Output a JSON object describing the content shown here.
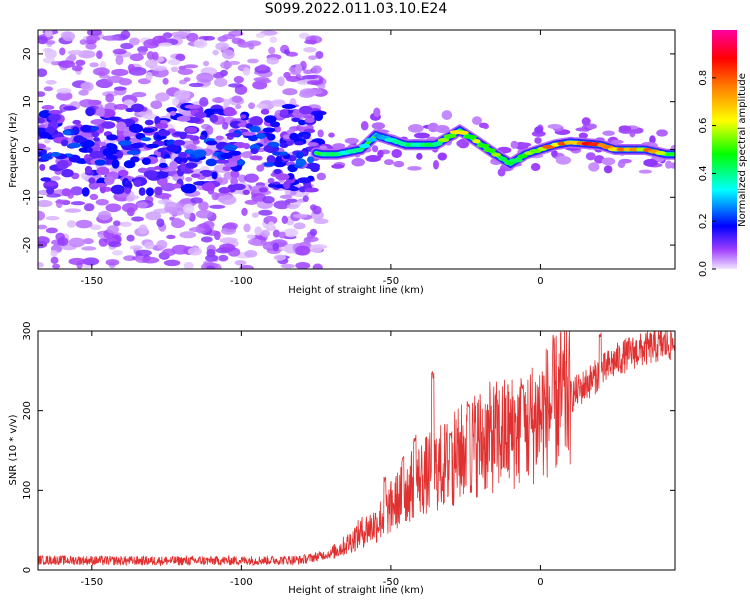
{
  "title": "S099.2022.011.03.10.E24",
  "chart_data": [
    {
      "type": "heatmap",
      "xlabel": "Height of straight line (km)",
      "ylabel": "Frequency (Hz)",
      "xlim": [
        -168,
        45
      ],
      "ylim": [
        -25,
        25
      ],
      "x_ticks": [
        -150,
        -100,
        -50,
        0
      ],
      "y_ticks": [
        -20,
        -10,
        0,
        10,
        20
      ],
      "colorbar": {
        "label": "Normalized spectral amplitude",
        "range": [
          0,
          1
        ],
        "ticks": [
          "0.0",
          "0.2",
          "0.4",
          "0.6",
          "0.8"
        ],
        "colors": [
          "#f0e4ff",
          "#7b00ff",
          "#0000ff",
          "#00ffff",
          "#00ff00",
          "#ffff00",
          "#ff8000",
          "#ff0000",
          "#ff00a0"
        ]
      },
      "ridge": {
        "x": [
          -168,
          -150,
          -130,
          -110,
          -95,
          -80,
          -73,
          -68,
          -60,
          -55,
          -50,
          -45,
          -35,
          -27,
          -22,
          -15,
          -10,
          -5,
          0,
          5,
          10,
          20,
          25,
          35,
          42
        ],
        "frequency": [
          1,
          1,
          0.5,
          1,
          0.5,
          0,
          -1,
          -1,
          0,
          3,
          2,
          1,
          1,
          4,
          2,
          -1,
          -3,
          -1,
          0,
          1,
          1.5,
          1,
          0,
          0,
          -1
        ],
        "amplitude": [
          0.2,
          0.25,
          0.25,
          0.2,
          0.2,
          0.2,
          0.35,
          0.45,
          0.4,
          0.3,
          0.4,
          0.45,
          0.5,
          0.8,
          0.55,
          0.6,
          0.45,
          0.55,
          0.75,
          0.8,
          0.85,
          0.9,
          0.85,
          0.75,
          0.55
        ]
      }
    },
    {
      "type": "line",
      "xlabel": "Height of straight line (km)",
      "ylabel": "SNR (10 * v/v)",
      "xlim": [
        -168,
        45
      ],
      "ylim": [
        0,
        300
      ],
      "x_ticks": [
        -150,
        -100,
        -50,
        0
      ],
      "y_ticks": [
        0,
        100,
        200,
        300
      ],
      "color": "#e03030",
      "trend": {
        "x": [
          -168,
          -140,
          -110,
          -80,
          -70,
          -65,
          -60,
          -55,
          -50,
          -45,
          -40,
          -35,
          -30,
          -25,
          -20,
          -15,
          -10,
          -5,
          0,
          5,
          10,
          15,
          20,
          25,
          30,
          35,
          40,
          45
        ],
        "snr": [
          12,
          11,
          11,
          12,
          20,
          30,
          45,
          55,
          75,
          95,
          110,
          120,
          130,
          145,
          155,
          160,
          165,
          170,
          185,
          200,
          215,
          230,
          245,
          260,
          270,
          275,
          280,
          282
        ]
      },
      "peaks": [
        {
          "x": -36,
          "snr": 250
        },
        {
          "x": -42,
          "snr": 170
        },
        {
          "x": -46,
          "snr": 145
        },
        {
          "x": -52,
          "snr": 120
        },
        {
          "x": -30,
          "snr": 175
        },
        {
          "x": -24,
          "snr": 210
        },
        {
          "x": -6,
          "snr": 235
        },
        {
          "x": 20,
          "snr": 300
        }
      ]
    }
  ]
}
